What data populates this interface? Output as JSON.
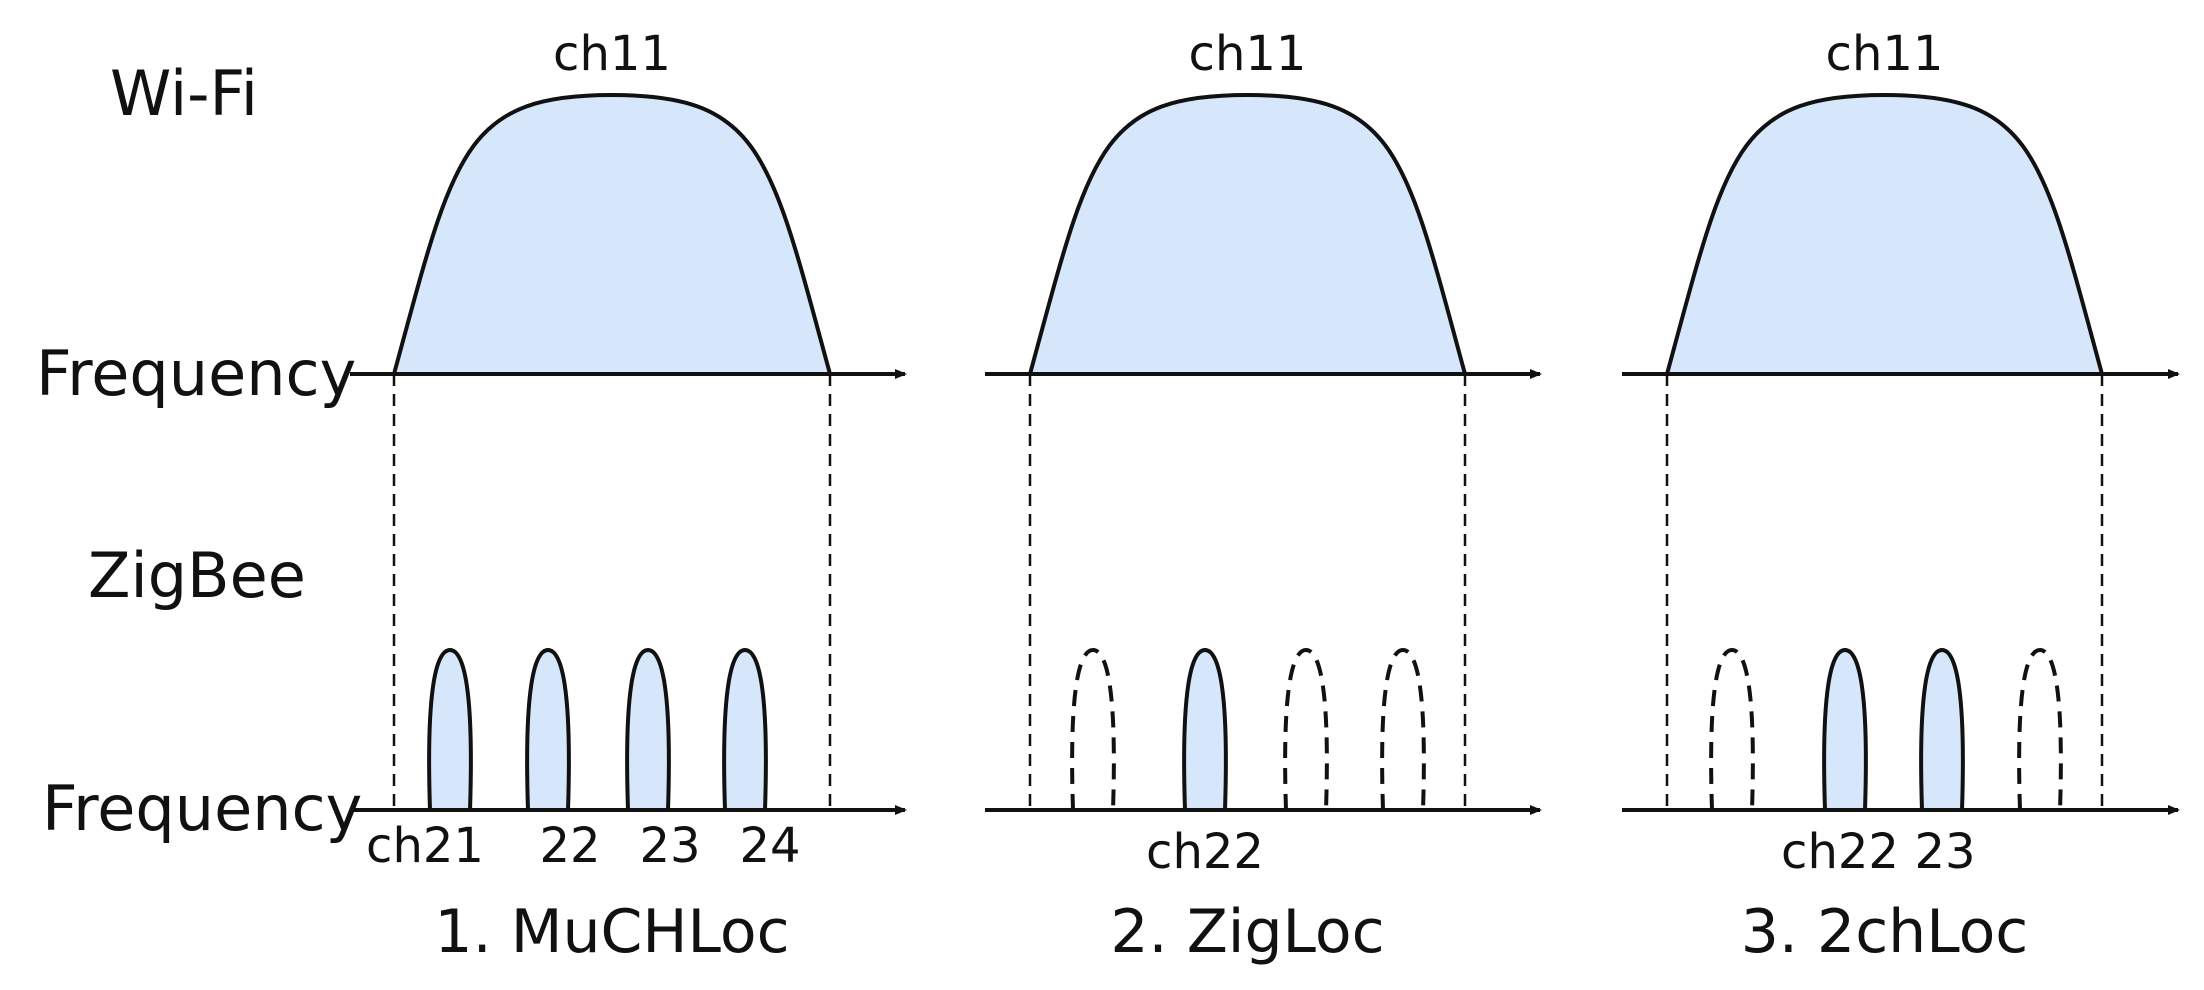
{
  "labels": {
    "wifi": "Wi-Fi",
    "zigbee": "ZigBee",
    "frequency_top": "Frequency",
    "frequency_bottom": "Frequency"
  },
  "colors": {
    "fill": "#d6e6fb",
    "stroke": "#111111"
  },
  "panels": [
    {
      "wifi_channel": "ch11",
      "caption": "1. MuCHLoc",
      "zigbee_channels": [
        {
          "label": "ch21",
          "active": true
        },
        {
          "label": "22",
          "active": true
        },
        {
          "label": "23",
          "active": true
        },
        {
          "label": "24",
          "active": true
        }
      ]
    },
    {
      "wifi_channel": "ch11",
      "caption": "2. ZigLoc",
      "zigbee_channels": [
        {
          "label": "",
          "active": false
        },
        {
          "label": "ch22",
          "active": true
        },
        {
          "label": "",
          "active": false
        },
        {
          "label": "",
          "active": false
        }
      ]
    },
    {
      "wifi_channel": "ch11",
      "caption": "3. 2chLoc",
      "zigbee_channels": [
        {
          "label": "",
          "active": false
        },
        {
          "label": "ch22",
          "active": true
        },
        {
          "label": "23",
          "active": true
        },
        {
          "label": "",
          "active": false
        }
      ]
    }
  ]
}
